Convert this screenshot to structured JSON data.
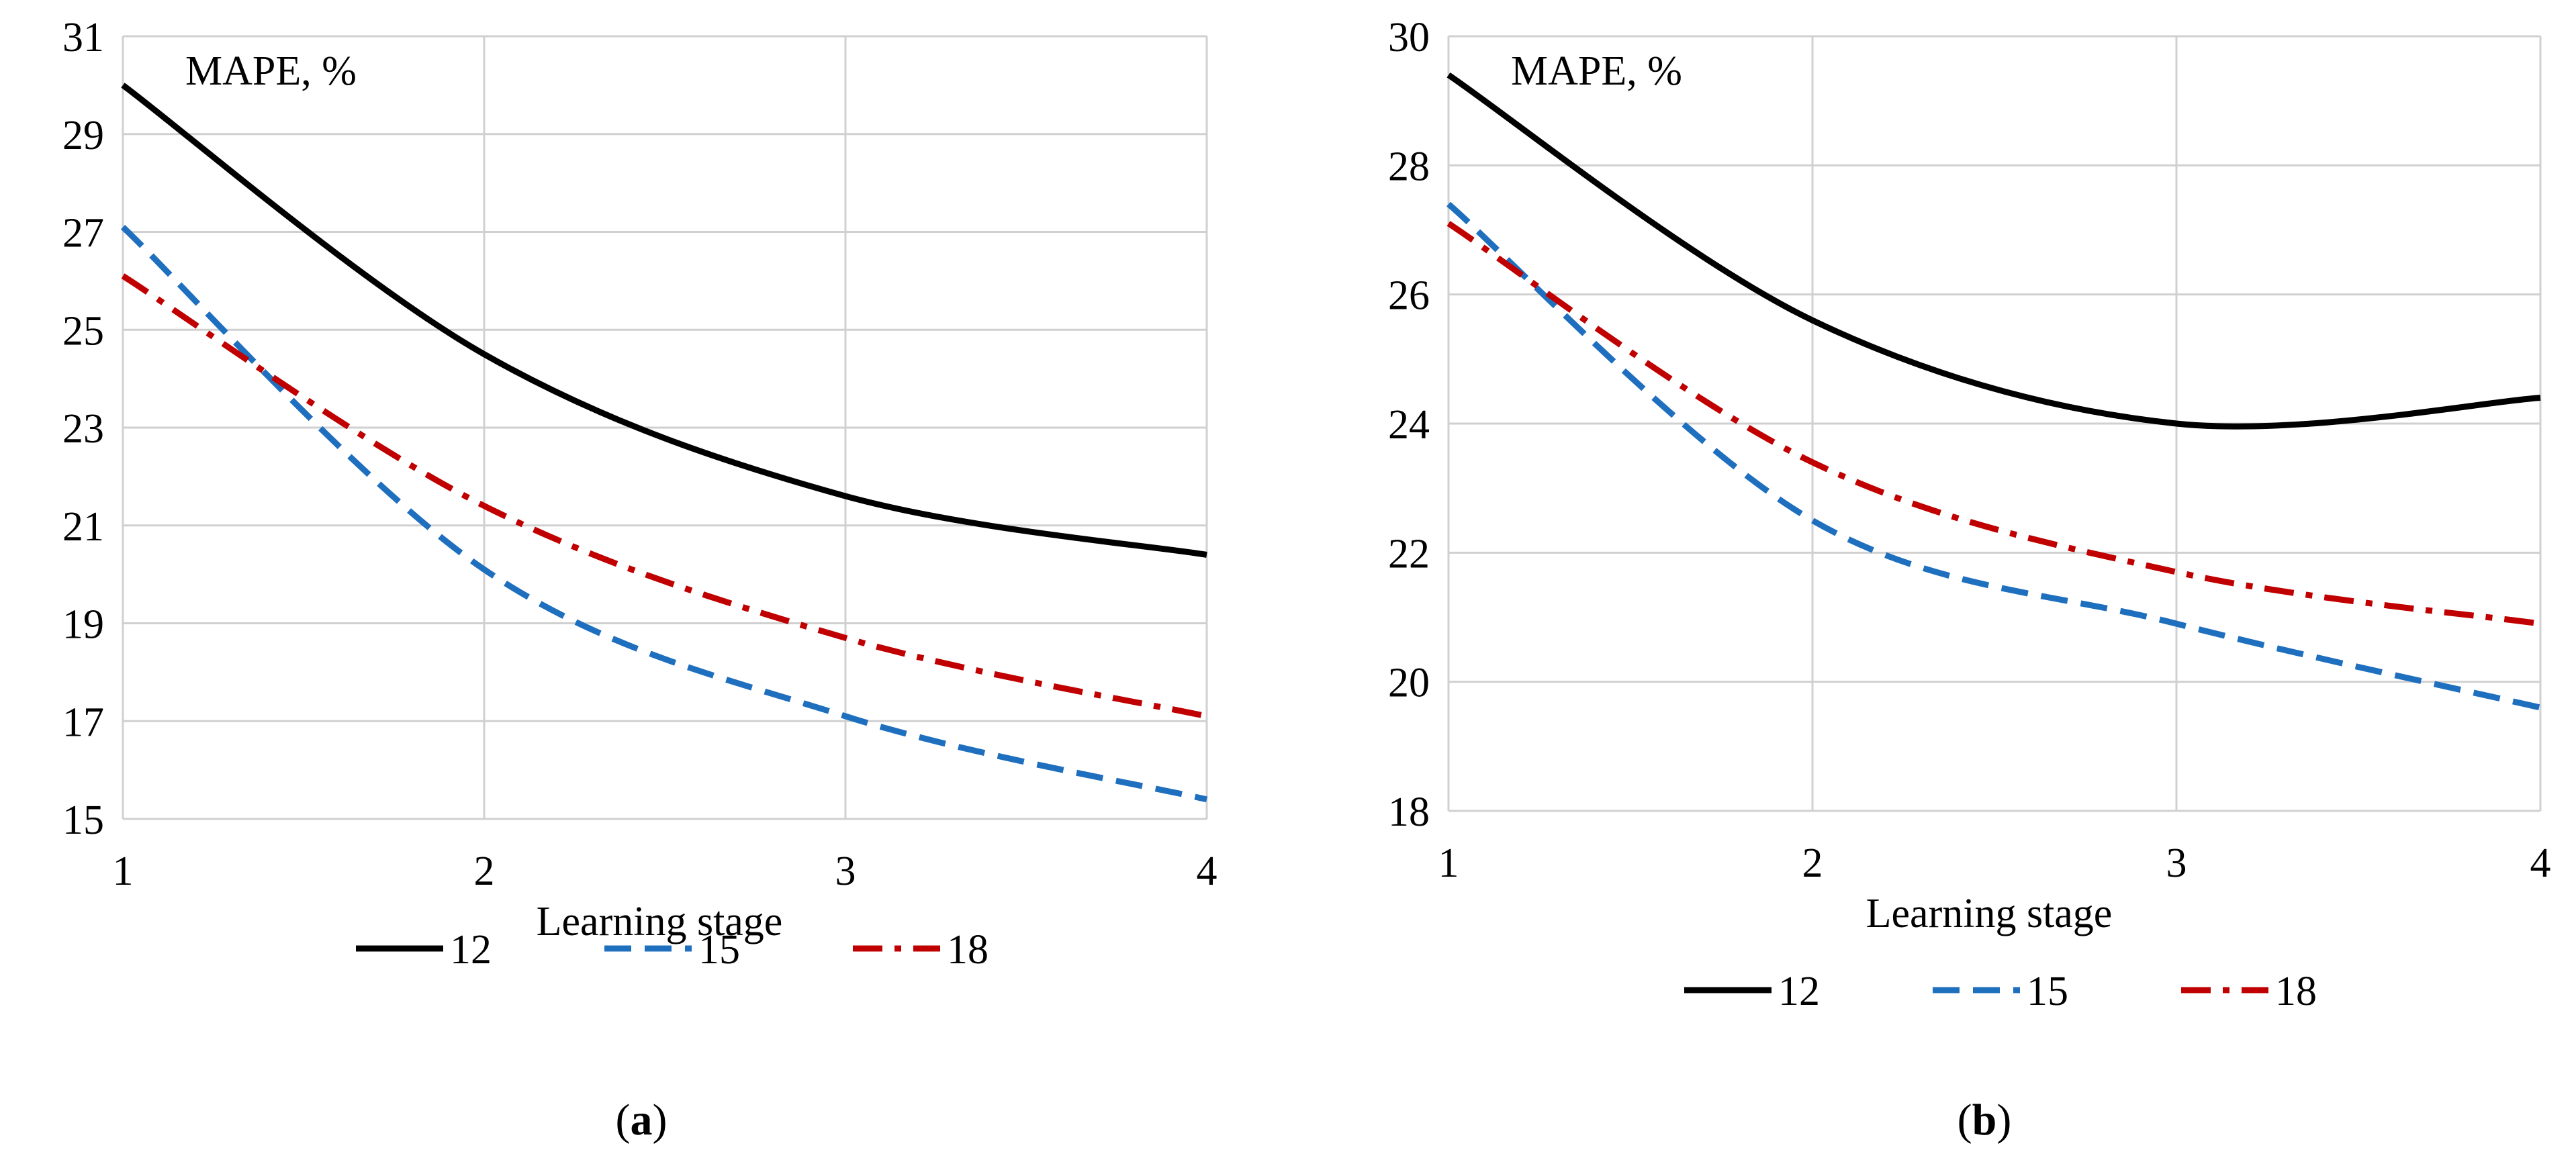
{
  "chart_data": [
    {
      "panel": "a",
      "type": "line",
      "title": "",
      "ylabel": "MAPE, %",
      "xlabel": "Learning stage",
      "x": [
        1,
        2,
        3,
        4
      ],
      "xticks": [
        "1",
        "2",
        "3",
        "4"
      ],
      "ylim": [
        15,
        31
      ],
      "yticks": [
        "15",
        "17",
        "19",
        "21",
        "23",
        "25",
        "27",
        "29",
        "31"
      ],
      "grid": true,
      "legend_position": "bottom",
      "series": [
        {
          "name": "12",
          "values": [
            30.0,
            24.5,
            21.6,
            20.4
          ],
          "color": "#000000",
          "dash": "solid"
        },
        {
          "name": "15",
          "values": [
            27.1,
            20.1,
            17.1,
            15.4
          ],
          "color": "#1f6fbf",
          "dash": "dash"
        },
        {
          "name": "18",
          "values": [
            26.1,
            21.4,
            18.7,
            17.1
          ],
          "color": "#c00000",
          "dash": "dashdot"
        }
      ]
    },
    {
      "panel": "b",
      "type": "line",
      "title": "",
      "ylabel": "MAPE, %",
      "xlabel": "Learning stage",
      "x": [
        1,
        2,
        3,
        4
      ],
      "xticks": [
        "1",
        "2",
        "3",
        "4"
      ],
      "ylim": [
        18,
        30
      ],
      "yticks": [
        "18",
        "20",
        "22",
        "24",
        "26",
        "28",
        "30"
      ],
      "grid": true,
      "legend_position": "bottom",
      "series": [
        {
          "name": "12",
          "values": [
            29.4,
            25.6,
            24.0,
            24.4
          ],
          "color": "#000000",
          "dash": "solid"
        },
        {
          "name": "15",
          "values": [
            27.4,
            22.5,
            20.9,
            19.6
          ],
          "color": "#1f6fbf",
          "dash": "dash"
        },
        {
          "name": "18",
          "values": [
            27.1,
            23.4,
            21.7,
            20.9
          ],
          "color": "#c00000",
          "dash": "dashdot"
        }
      ]
    }
  ],
  "panel_labels": [
    {
      "open": "(",
      "letter": "a",
      "close": ")"
    },
    {
      "open": "(",
      "letter": "b",
      "close": ")"
    }
  ]
}
